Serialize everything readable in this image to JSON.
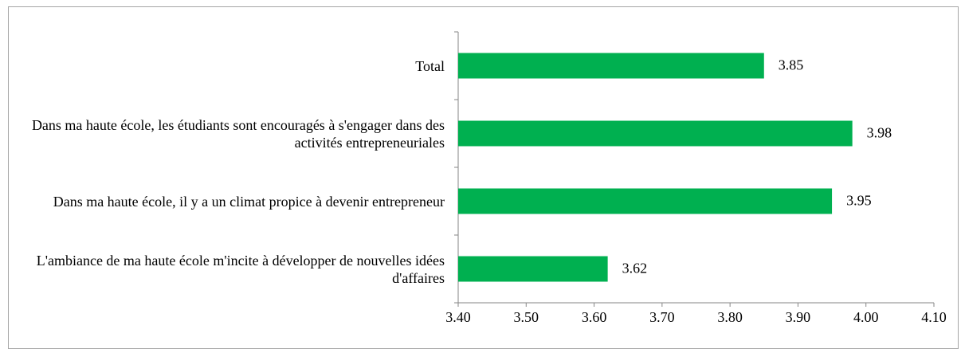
{
  "chart_data": {
    "type": "barh",
    "categories": [
      "Total",
      "Dans ma haute école, les étudiants sont encouragés à s'engager dans des activités entrepreneuriales",
      "Dans ma haute école, il y a un climat propice à devenir entrepreneur",
      "L'ambiance de ma haute école m'incite à développer de nouvelles idées d'affaires"
    ],
    "values": [
      3.85,
      3.98,
      3.95,
      3.62
    ],
    "color": "#00b050",
    "xlim": [
      3.4,
      4.1
    ],
    "xticks": [
      {
        "value": 3.4,
        "label": "3.40"
      },
      {
        "value": 3.5,
        "label": "3.50"
      },
      {
        "value": 3.6,
        "label": "3.60"
      },
      {
        "value": 3.7,
        "label": "3.70"
      },
      {
        "value": 3.8,
        "label": "3.80"
      },
      {
        "value": 3.9,
        "label": "3.90"
      },
      {
        "value": 4.0,
        "label": "4.00"
      },
      {
        "value": 4.1,
        "label": "4.10"
      }
    ],
    "grid": false
  }
}
